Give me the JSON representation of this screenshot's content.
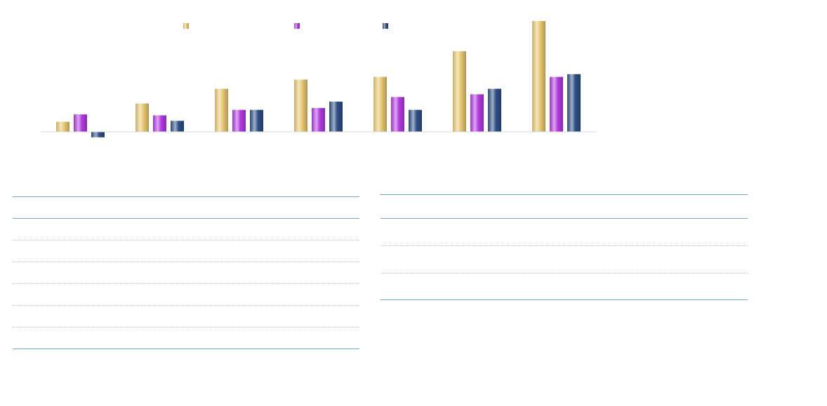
{
  "chart_data": {
    "type": "bar",
    "title": "",
    "xlabel": "",
    "ylabel": "",
    "categories": [
      "",
      "",
      "",
      "",
      "",
      "",
      ""
    ],
    "series": [
      {
        "name": "",
        "color": "#e8c770",
        "values": [
          1.1,
          3.1,
          4.7,
          5.7,
          6.0,
          8.8,
          12.1
        ]
      },
      {
        "name": "",
        "color": "#b23ae0",
        "values": [
          1.9,
          1.8,
          2.4,
          2.6,
          3.8,
          4.1,
          6.0
        ]
      },
      {
        "name": "",
        "color": "#2e4f85",
        "values": [
          -0.6,
          1.2,
          2.4,
          3.3,
          2.4,
          4.7,
          6.3
        ]
      }
    ],
    "ylim": [
      -1,
      12.1
    ],
    "grid": false,
    "legend_position": "top"
  },
  "tables": {
    "left": {
      "rows": [
        "",
        "",
        "",
        "",
        "",
        "",
        ""
      ]
    },
    "right": {
      "rows": [
        "",
        "",
        "",
        ""
      ]
    }
  }
}
